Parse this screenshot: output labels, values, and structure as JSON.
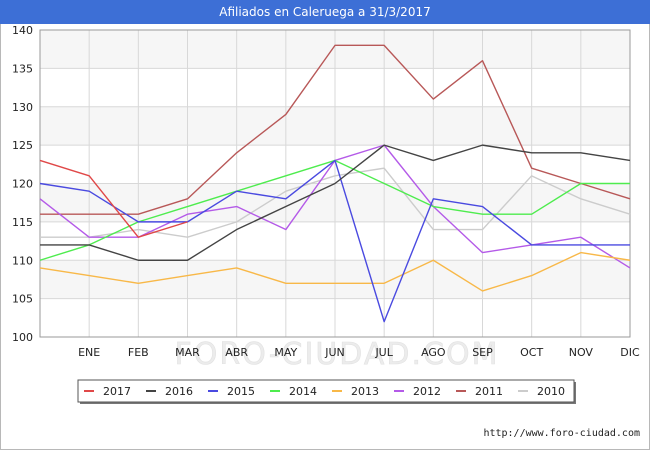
{
  "header": {
    "title": "Afiliados en Caleruega a 31/3/2017"
  },
  "footer": {
    "url": "http://www.foro-ciudad.com"
  },
  "watermark": "FORO-CIUDAD.COM",
  "chart_data": {
    "type": "line",
    "title": "Afiliados en Caleruega a 31/3/2017",
    "xlabel": "",
    "ylabel": "",
    "categories": [
      "",
      "ENE",
      "FEB",
      "MAR",
      "ABR",
      "MAY",
      "JUN",
      "JUL",
      "AGO",
      "SEP",
      "OCT",
      "NOV",
      "DIC"
    ],
    "ylim": [
      100,
      140
    ],
    "yticks": [
      100,
      105,
      110,
      115,
      120,
      125,
      130,
      135,
      140
    ],
    "grid": true,
    "legend_position": "bottom",
    "series": [
      {
        "name": "2017",
        "color": "#e04848",
        "values": [
          123,
          121,
          113,
          115,
          null,
          null,
          null,
          null,
          null,
          null,
          null,
          null,
          null
        ]
      },
      {
        "name": "2016",
        "color": "#444444",
        "values": [
          112,
          112,
          110,
          110,
          114,
          117,
          120,
          125,
          123,
          125,
          124,
          124,
          123
        ]
      },
      {
        "name": "2015",
        "color": "#4a4ae0",
        "values": [
          120,
          119,
          115,
          115,
          119,
          118,
          123,
          102,
          118,
          117,
          112,
          112,
          112
        ]
      },
      {
        "name": "2014",
        "color": "#4eec4e",
        "values": [
          110,
          112,
          115,
          117,
          119,
          121,
          123,
          120,
          117,
          116,
          116,
          120,
          120
        ]
      },
      {
        "name": "2013",
        "color": "#f8b848",
        "values": [
          109,
          108,
          107,
          108,
          109,
          107,
          107,
          107,
          110,
          106,
          108,
          111,
          110
        ]
      },
      {
        "name": "2012",
        "color": "#b45ae8",
        "values": [
          118,
          113,
          113,
          116,
          117,
          114,
          123,
          125,
          117,
          111,
          112,
          113,
          109
        ]
      },
      {
        "name": "2011",
        "color": "#b85858",
        "values": [
          116,
          116,
          116,
          118,
          124,
          129,
          138,
          138,
          131,
          136,
          122,
          120,
          118
        ]
      },
      {
        "name": "2010",
        "color": "#cccccc",
        "values": [
          113,
          113,
          114,
          113,
          115,
          119,
          121,
          122,
          114,
          114,
          121,
          118,
          116
        ]
      }
    ]
  }
}
